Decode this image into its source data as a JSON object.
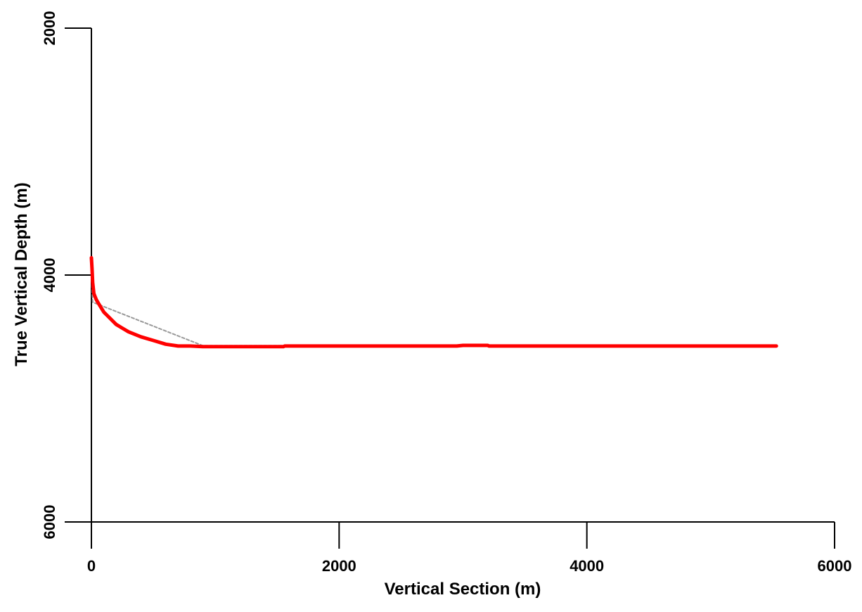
{
  "chart_data": {
    "type": "line",
    "title": "",
    "xlabel": "Vertical Section (m)",
    "ylabel": "True Vertical Depth (m)",
    "xlim": [
      0,
      6000
    ],
    "ylim": [
      2000,
      6000
    ],
    "y_inverted": true,
    "grid": false,
    "legend": "none",
    "x_ticks": [
      0,
      2000,
      4000,
      6000
    ],
    "y_ticks": [
      2000,
      4000,
      6000
    ],
    "x_tick_labels": [
      "0",
      "2000",
      "4000",
      "6000"
    ],
    "y_tick_labels": [
      "2000",
      "4000",
      "6000"
    ],
    "series": [
      {
        "color": "#ff0000",
        "style": "solid",
        "x": [
          0,
          5,
          10,
          20,
          40,
          70,
          100,
          150,
          200,
          250,
          300,
          400,
          500,
          600,
          700,
          800,
          900,
          1000,
          1200,
          1400,
          1550,
          1560,
          2000,
          2500,
          2950,
          3000,
          3100,
          3200,
          3210,
          3500,
          4000,
          4500,
          5000,
          5530
        ],
        "y": [
          3860,
          3950,
          4060,
          4150,
          4200,
          4250,
          4300,
          4350,
          4400,
          4430,
          4460,
          4500,
          4530,
          4560,
          4575,
          4575,
          4580,
          4580,
          4580,
          4580,
          4580,
          4575,
          4575,
          4575,
          4575,
          4570,
          4570,
          4570,
          4575,
          4575,
          4575,
          4575,
          4575,
          4575
        ]
      },
      {
        "color": "#999999",
        "style": "dashed",
        "x": [
          0,
          10,
          900,
          1550
        ],
        "y": [
          4000,
          4220,
          4572,
          4572
        ]
      }
    ]
  }
}
